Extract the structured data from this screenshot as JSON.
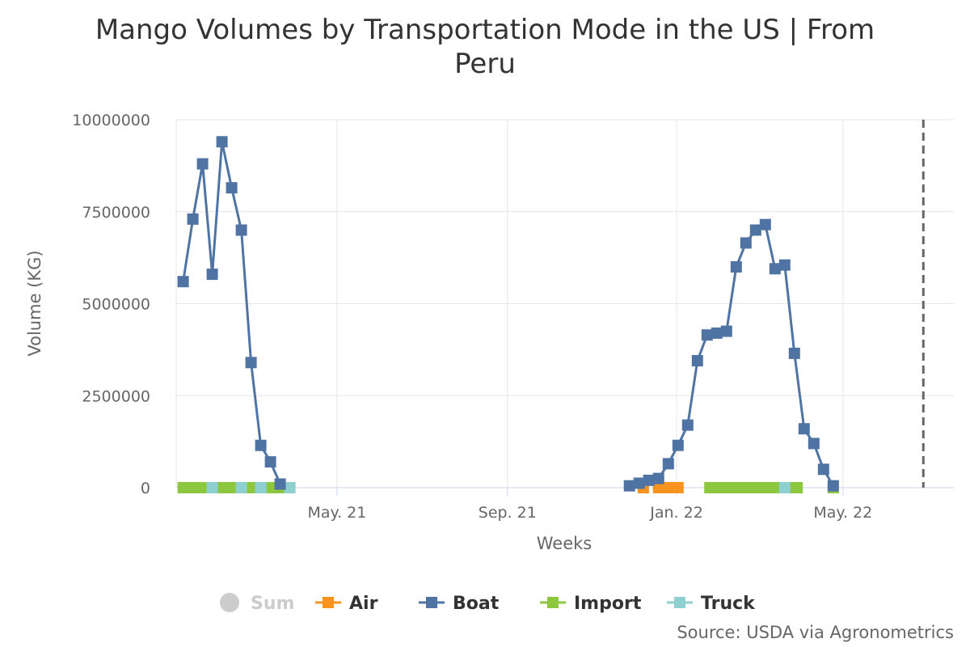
{
  "chart_data": {
    "type": "line",
    "title_lines": [
      "Mango Volumes by Transportation Mode in the US | From",
      "Peru"
    ],
    "xlabel": "Weeks",
    "ylabel": "Volume (KG)",
    "ylim": [
      0,
      10000000
    ],
    "y_ticks": [
      0,
      2500000,
      5000000,
      7500000,
      10000000
    ],
    "y_tick_labels": [
      "0",
      "2500000",
      "5000000",
      "7500000",
      "10000000"
    ],
    "xlim": [
      "2021-01-05",
      "2022-07-20"
    ],
    "x_ticks": [
      "2021-05-01",
      "2021-09-01",
      "2022-01-01",
      "2022-05-01"
    ],
    "x_tick_labels": [
      "May. 21",
      "Sep. 21",
      "Jan. 22",
      "May. 22"
    ],
    "grid": true,
    "legend_position": "bottom",
    "plot_line_date": "2022-06-28",
    "series": [
      {
        "name": "Boat",
        "color": "#4f74a3",
        "x": [
          "2021-01-10",
          "2021-01-17",
          "2021-01-24",
          "2021-01-31",
          "2021-02-07",
          "2021-02-14",
          "2021-02-21",
          "2021-02-28",
          "2021-03-07",
          "2021-03-14",
          "2021-03-21",
          "2021-11-28",
          "2021-12-05",
          "2021-12-12",
          "2021-12-19",
          "2021-12-26",
          "2022-01-02",
          "2022-01-09",
          "2022-01-16",
          "2022-01-23",
          "2022-01-30",
          "2022-02-06",
          "2022-02-13",
          "2022-02-20",
          "2022-02-27",
          "2022-03-06",
          "2022-03-13",
          "2022-03-20",
          "2022-03-27",
          "2022-04-03",
          "2022-04-10",
          "2022-04-17",
          "2022-04-24"
        ],
        "values": [
          5600000,
          7300000,
          8800000,
          5800000,
          9400000,
          8150000,
          7000000,
          3400000,
          1150000,
          700000,
          100000,
          50000,
          120000,
          200000,
          250000,
          650000,
          1150000,
          1700000,
          3450000,
          4150000,
          4200000,
          4250000,
          6000000,
          6650000,
          7000000,
          7150000,
          5950000,
          6050000,
          3650000,
          1600000,
          1200000,
          500000,
          50000
        ]
      },
      {
        "name": "Air",
        "color": "#f7931e",
        "x": [
          "2021-12-08",
          "2021-12-19",
          "2021-12-26",
          "2022-01-02"
        ],
        "values": [
          0,
          0,
          0,
          0
        ]
      },
      {
        "name": "Import",
        "color": "#8dc63f",
        "x": [
          "2021-01-10",
          "2021-01-17",
          "2021-01-24",
          "2021-01-31",
          "2021-02-07",
          "2021-02-14",
          "2021-02-21",
          "2021-02-28",
          "2021-03-07",
          "2021-03-14",
          "2021-03-21",
          "2022-01-25",
          "2022-02-01",
          "2022-02-08",
          "2022-02-15",
          "2022-02-22",
          "2022-03-01",
          "2022-03-08",
          "2022-03-15",
          "2022-03-22",
          "2022-03-29",
          "2022-04-24"
        ],
        "values": [
          0,
          0,
          0,
          0,
          0,
          0,
          0,
          0,
          0,
          0,
          0,
          0,
          0,
          0,
          0,
          0,
          0,
          0,
          0,
          0,
          0,
          0
        ]
      },
      {
        "name": "Truck",
        "color": "#8ecfcf",
        "x": [
          "2021-01-31",
          "2021-02-21",
          "2021-03-07",
          "2021-03-28",
          "2022-03-20"
        ],
        "values": [
          0,
          0,
          0,
          0,
          0
        ]
      }
    ],
    "legend_items": [
      {
        "name": "Sum",
        "color": "#cccccc",
        "symbol": "circle",
        "hidden": true
      },
      {
        "name": "Air",
        "color": "#f7931e",
        "symbol": "square",
        "hidden": false
      },
      {
        "name": "Boat",
        "color": "#4f74a3",
        "symbol": "square",
        "hidden": false
      },
      {
        "name": "Import",
        "color": "#8dc63f",
        "symbol": "square",
        "hidden": false
      },
      {
        "name": "Truck",
        "color": "#8ecfcf",
        "symbol": "square",
        "hidden": false
      }
    ],
    "credits": "Source: USDA via Agronometrics"
  }
}
